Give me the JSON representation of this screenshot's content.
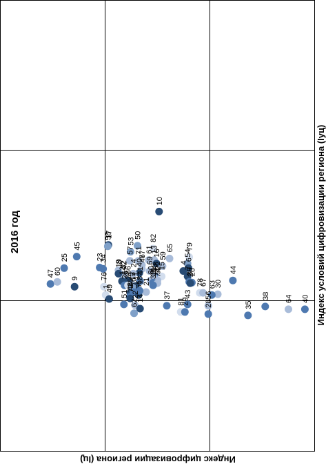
{
  "chart_data": {
    "type": "scatter",
    "title": "2016 год",
    "xlabel": "Индекс условий цифровизации региона (Iуц)",
    "ylabel": "Индекс цифровизации региона (Iц)",
    "grid": true,
    "legend": "none",
    "colors": [
      "#284b74",
      "#4e79b0",
      "#7fa0c8",
      "#a9bcd9",
      "#d2dded"
    ],
    "points": [
      {
        "label": "10",
        "x": 0.59,
        "y": 0.36,
        "shade": 0
      },
      {
        "label": "17",
        "x": 0.368,
        "y": 0.024,
        "shade": 0
      },
      {
        "label": "58",
        "x": 0.359,
        "y": 0.02,
        "shade": 2
      },
      {
        "label": "50",
        "x": 0.363,
        "y": 0.217,
        "shade": 2
      },
      {
        "label": "82",
        "x": 0.344,
        "y": 0.32,
        "shade": 4
      },
      {
        "label": "53",
        "x": 0.323,
        "y": 0.171,
        "shade": 2
      },
      {
        "label": "45",
        "x": 0.291,
        "y": -0.186,
        "shade": 1
      },
      {
        "label": "79",
        "x": 0.287,
        "y": 0.56,
        "shade": 4
      },
      {
        "label": "65",
        "x": 0.278,
        "y": 0.429,
        "shade": 3
      },
      {
        "label": "61",
        "x": 0.268,
        "y": 0.292,
        "shade": 3
      },
      {
        "label": "13",
        "x": 0.268,
        "y": 0.327,
        "shade": 3
      },
      {
        "label": "57",
        "x": 0.263,
        "y": 0.166,
        "shade": 3
      },
      {
        "label": "71",
        "x": 0.263,
        "y": 0.223,
        "shade": 3
      },
      {
        "label": "54",
        "x": 0.245,
        "y": 0.549,
        "shade": 2
      },
      {
        "label": "16",
        "x": 0.245,
        "y": 0.343,
        "shade": 0
      },
      {
        "label": "77",
        "x": 0.236,
        "y": 0.246,
        "shade": 3
      },
      {
        "label": "59",
        "x": 0.227,
        "y": 0.383,
        "shade": 3
      },
      {
        "label": "6",
        "x": 0.214,
        "y": 0.555,
        "shade": 0
      },
      {
        "label": "25",
        "x": 0.214,
        "y": -0.269,
        "shade": 1
      },
      {
        "label": "23",
        "x": 0.218,
        "y": -0.034,
        "shade": 1
      },
      {
        "label": "34",
        "x": 0.209,
        "y": -0.011,
        "shade": 1
      },
      {
        "label": "46",
        "x": 0.209,
        "y": 0.246,
        "shade": 3
      },
      {
        "label": "4",
        "x": 0.195,
        "y": 0.52,
        "shade": 0
      },
      {
        "label": "8",
        "x": 0.2,
        "y": 0.091,
        "shade": 3
      },
      {
        "label": "69",
        "x": 0.195,
        "y": 0.297,
        "shade": 3
      },
      {
        "label": "7",
        "x": 0.159,
        "y": 0.549,
        "shade": 0
      },
      {
        "label": "68",
        "x": 0.159,
        "y": 0.337,
        "shade": 1
      },
      {
        "label": "15",
        "x": 0.159,
        "y": 0.377,
        "shade": 4
      },
      {
        "label": "55",
        "x": 0.15,
        "y": 0.326,
        "shade": 3
      },
      {
        "label": "40",
        "x": 0.182,
        "y": 0.229,
        "shade": 0
      },
      {
        "label": "24",
        "x": 0.177,
        "y": 0.189,
        "shade": 3
      },
      {
        "label": "32",
        "x": 0.168,
        "y": 0.12,
        "shade": 3
      },
      {
        "label": "42",
        "x": 0.163,
        "y": 0.126,
        "shade": 3
      },
      {
        "label": "19",
        "x": 0.177,
        "y": 0.091,
        "shade": 0
      },
      {
        "label": "44",
        "x": 0.132,
        "y": 0.849,
        "shade": 1
      },
      {
        "label": "39",
        "x": 0.123,
        "y": 0.56,
        "shade": 1
      },
      {
        "label": "20",
        "x": 0.118,
        "y": 0.577,
        "shade": 1
      },
      {
        "label": "2",
        "x": 0.114,
        "y": 0.566,
        "shade": 0
      },
      {
        "label": "80",
        "x": 0.132,
        "y": 0.303,
        "shade": 3
      },
      {
        "label": "52",
        "x": 0.132,
        "y": 0.349,
        "shade": 3
      },
      {
        "label": "31",
        "x": 0.118,
        "y": 0.32,
        "shade": 1
      },
      {
        "label": "74",
        "x": 0.114,
        "y": 0.349,
        "shade": 3
      },
      {
        "label": "41",
        "x": 0.127,
        "y": 0.234,
        "shade": 1
      },
      {
        "label": "5",
        "x": 0.118,
        "y": 0.171,
        "shade": 3
      },
      {
        "label": "3",
        "x": 0.118,
        "y": 0.154,
        "shade": 1
      },
      {
        "label": "12",
        "x": 0.127,
        "y": 0.114,
        "shade": 0
      },
      {
        "label": "36",
        "x": 0.132,
        "y": 0.154,
        "shade": 0
      },
      {
        "label": "47",
        "x": 0.109,
        "y": -0.36,
        "shade": 1
      },
      {
        "label": "60",
        "x": 0.123,
        "y": -0.314,
        "shade": 3
      },
      {
        "label": "9",
        "x": 0.091,
        "y": -0.2,
        "shade": 0
      },
      {
        "label": "76",
        "x": 0.091,
        "y": -0.006,
        "shade": 4
      },
      {
        "label": "33",
        "x": 0.1,
        "y": 0.32,
        "shade": 1
      },
      {
        "label": "26",
        "x": 0.1,
        "y": 0.131,
        "shade": 1
      },
      {
        "label": "27",
        "x": 0.1,
        "y": 0.154,
        "shade": 4
      },
      {
        "label": "11",
        "x": 0.095,
        "y": 0.206,
        "shade": 0
      },
      {
        "label": "73",
        "x": 0.091,
        "y": 0.183,
        "shade": 2
      },
      {
        "label": "78",
        "x": 0.05,
        "y": 0.629,
        "shade": 4
      },
      {
        "label": "67",
        "x": 0.05,
        "y": 0.651,
        "shade": 3
      },
      {
        "label": "30",
        "x": 0.041,
        "y": 0.749,
        "shade": 3
      },
      {
        "label": "63",
        "x": 0.036,
        "y": 0.709,
        "shade": 1
      },
      {
        "label": "21",
        "x": 0.055,
        "y": 0.274,
        "shade": 3
      },
      {
        "label": "1",
        "x": 0.036,
        "y": 0.006,
        "shade": 4
      },
      {
        "label": "75",
        "x": 0.05,
        "y": 0.169,
        "shade": 0
      },
      {
        "label": "70",
        "x": 0.055,
        "y": 0.19,
        "shade": 1
      },
      {
        "label": "66",
        "x": 0.036,
        "y": 0.224,
        "shade": 0
      },
      {
        "label": "18",
        "x": 0.064,
        "y": 0.231,
        "shade": 1
      },
      {
        "label": "48",
        "x": 0.023,
        "y": 0.166,
        "shade": 1
      },
      {
        "label": "72",
        "x": 0.013,
        "y": 0.169,
        "shade": 0
      },
      {
        "label": "49",
        "x": 0.009,
        "y": 0.029,
        "shade": 0
      },
      {
        "label": "43",
        "x": -0.027,
        "y": 0.549,
        "shade": 1
      },
      {
        "label": "56",
        "x": -0.036,
        "y": 0.686,
        "shade": 3
      },
      {
        "label": "37",
        "x": -0.036,
        "y": 0.411,
        "shade": 1
      },
      {
        "label": "51",
        "x": -0.027,
        "y": 0.127,
        "shade": 1
      },
      {
        "label": "38",
        "x": -0.041,
        "y": 1.063,
        "shade": 1
      },
      {
        "label": "22",
        "x": -0.032,
        "y": 0.2,
        "shade": 3
      },
      {
        "label": "14",
        "x": -0.055,
        "y": 0.234,
        "shade": 0
      },
      {
        "label": "64",
        "x": -0.059,
        "y": 1.217,
        "shade": 3
      },
      {
        "label": "40",
        "x": -0.059,
        "y": 1.326,
        "shade": 1
      },
      {
        "label": "81",
        "x": -0.077,
        "y": 0.503,
        "shade": 4
      },
      {
        "label": "29",
        "x": -0.077,
        "y": 0.531,
        "shade": 1
      },
      {
        "label": "62",
        "x": -0.086,
        "y": 0.194,
        "shade": 2
      },
      {
        "label": "28",
        "x": -0.091,
        "y": 0.686,
        "shade": 1
      },
      {
        "label": "35",
        "x": -0.1,
        "y": 0.949,
        "shade": 1
      }
    ]
  }
}
